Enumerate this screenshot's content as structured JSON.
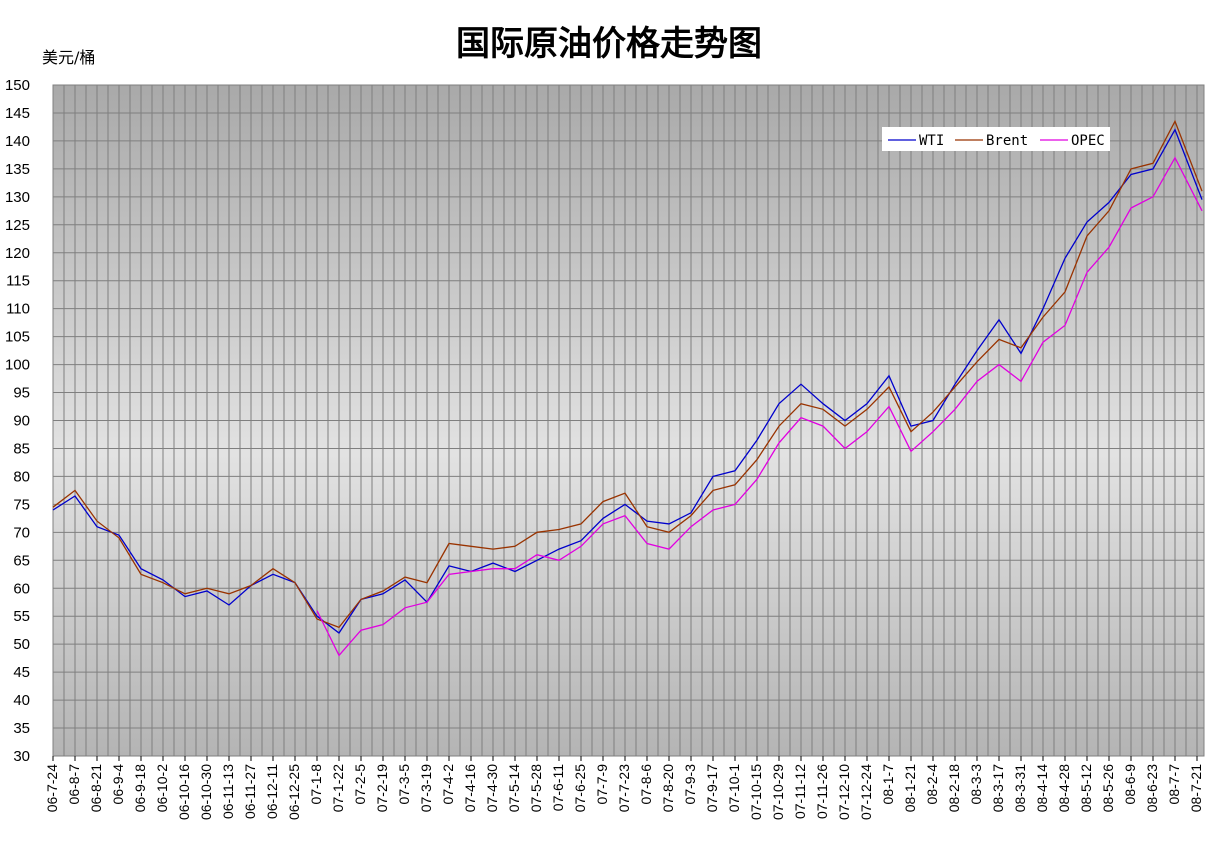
{
  "chart_data": {
    "type": "line",
    "title": "国际原油价格走势图",
    "ylabel": "美元/桶",
    "xlabel": "",
    "ylim": [
      30,
      150
    ],
    "yticks": [
      30,
      35,
      40,
      45,
      50,
      55,
      60,
      65,
      70,
      75,
      80,
      85,
      90,
      95,
      100,
      105,
      110,
      115,
      120,
      125,
      130,
      135,
      140,
      145,
      150
    ],
    "grid": true,
    "legend": "top-right",
    "x": [
      "06-7-24",
      "06-8-7",
      "06-8-21",
      "06-9-4",
      "06-9-18",
      "06-10-2",
      "06-10-16",
      "06-10-30",
      "06-11-13",
      "06-11-27",
      "06-12-11",
      "06-12-25",
      "07-1-8",
      "07-1-22",
      "07-2-5",
      "07-2-19",
      "07-3-5",
      "07-3-19",
      "07-4-2",
      "07-4-16",
      "07-4-30",
      "07-5-14",
      "07-5-28",
      "07-6-11",
      "07-6-25",
      "07-7-9",
      "07-7-23",
      "07-8-6",
      "07-8-20",
      "07-9-3",
      "07-9-17",
      "07-10-1",
      "07-10-15",
      "07-10-29",
      "07-11-12",
      "07-11-26",
      "07-12-10",
      "07-12-24",
      "08-1-7",
      "08-1-21",
      "08-2-4",
      "08-2-18",
      "08-3-3",
      "08-3-17",
      "08-3-31",
      "08-4-14",
      "08-4-28",
      "08-5-12",
      "08-5-26",
      "08-6-9",
      "08-6-23",
      "08-7-7",
      "08-7-21"
    ],
    "series": [
      {
        "name": "WTI",
        "color": "#0000cc",
        "values": [
          74.0,
          76.5,
          71.0,
          69.5,
          63.5,
          61.5,
          58.5,
          59.5,
          57.0,
          60.5,
          62.5,
          61.0,
          55.0,
          52.0,
          58.0,
          59.0,
          61.5,
          57.5,
          64.0,
          63.0,
          64.5,
          63.0,
          65.0,
          67.0,
          68.5,
          72.5,
          75.0,
          72.0,
          71.5,
          73.5,
          80.0,
          81.0,
          86.5,
          93.0,
          96.5,
          93.0,
          90.0,
          93.0,
          98.0,
          89.0,
          90.0,
          96.5,
          102.5,
          108.0,
          102.0,
          110.0,
          119.0,
          125.5,
          129.0,
          134.0,
          135.0,
          142.0,
          129.5
        ]
      },
      {
        "name": "Brent",
        "color": "#993300",
        "values": [
          74.5,
          77.5,
          72.0,
          69.0,
          62.5,
          61.0,
          59.0,
          60.0,
          59.0,
          60.5,
          63.5,
          61.0,
          54.5,
          53.0,
          58.0,
          59.5,
          62.0,
          61.0,
          68.0,
          67.5,
          67.0,
          67.5,
          70.0,
          70.5,
          71.5,
          75.5,
          77.0,
          71.0,
          70.0,
          73.0,
          77.5,
          78.5,
          83.0,
          89.0,
          93.0,
          92.0,
          89.0,
          92.0,
          96.0,
          88.0,
          91.5,
          96.0,
          100.5,
          104.5,
          103.0,
          108.5,
          113.0,
          123.0,
          127.5,
          135.0,
          136.0,
          143.5,
          131.0
        ]
      },
      {
        "name": "OPEC",
        "color": "#e100e1",
        "values": [
          null,
          null,
          null,
          null,
          null,
          null,
          null,
          null,
          null,
          null,
          null,
          null,
          56.0,
          48.0,
          52.5,
          53.5,
          56.5,
          57.5,
          62.5,
          63.0,
          63.5,
          63.5,
          66.0,
          65.0,
          67.5,
          71.5,
          73.0,
          68.0,
          67.0,
          71.0,
          74.0,
          75.0,
          79.5,
          86.0,
          90.5,
          89.0,
          85.0,
          88.0,
          92.5,
          84.5,
          88.0,
          92.0,
          97.0,
          100.0,
          97.0,
          104.0,
          107.0,
          116.5,
          121.0,
          128.0,
          130.0,
          137.0,
          127.5
        ]
      }
    ]
  }
}
